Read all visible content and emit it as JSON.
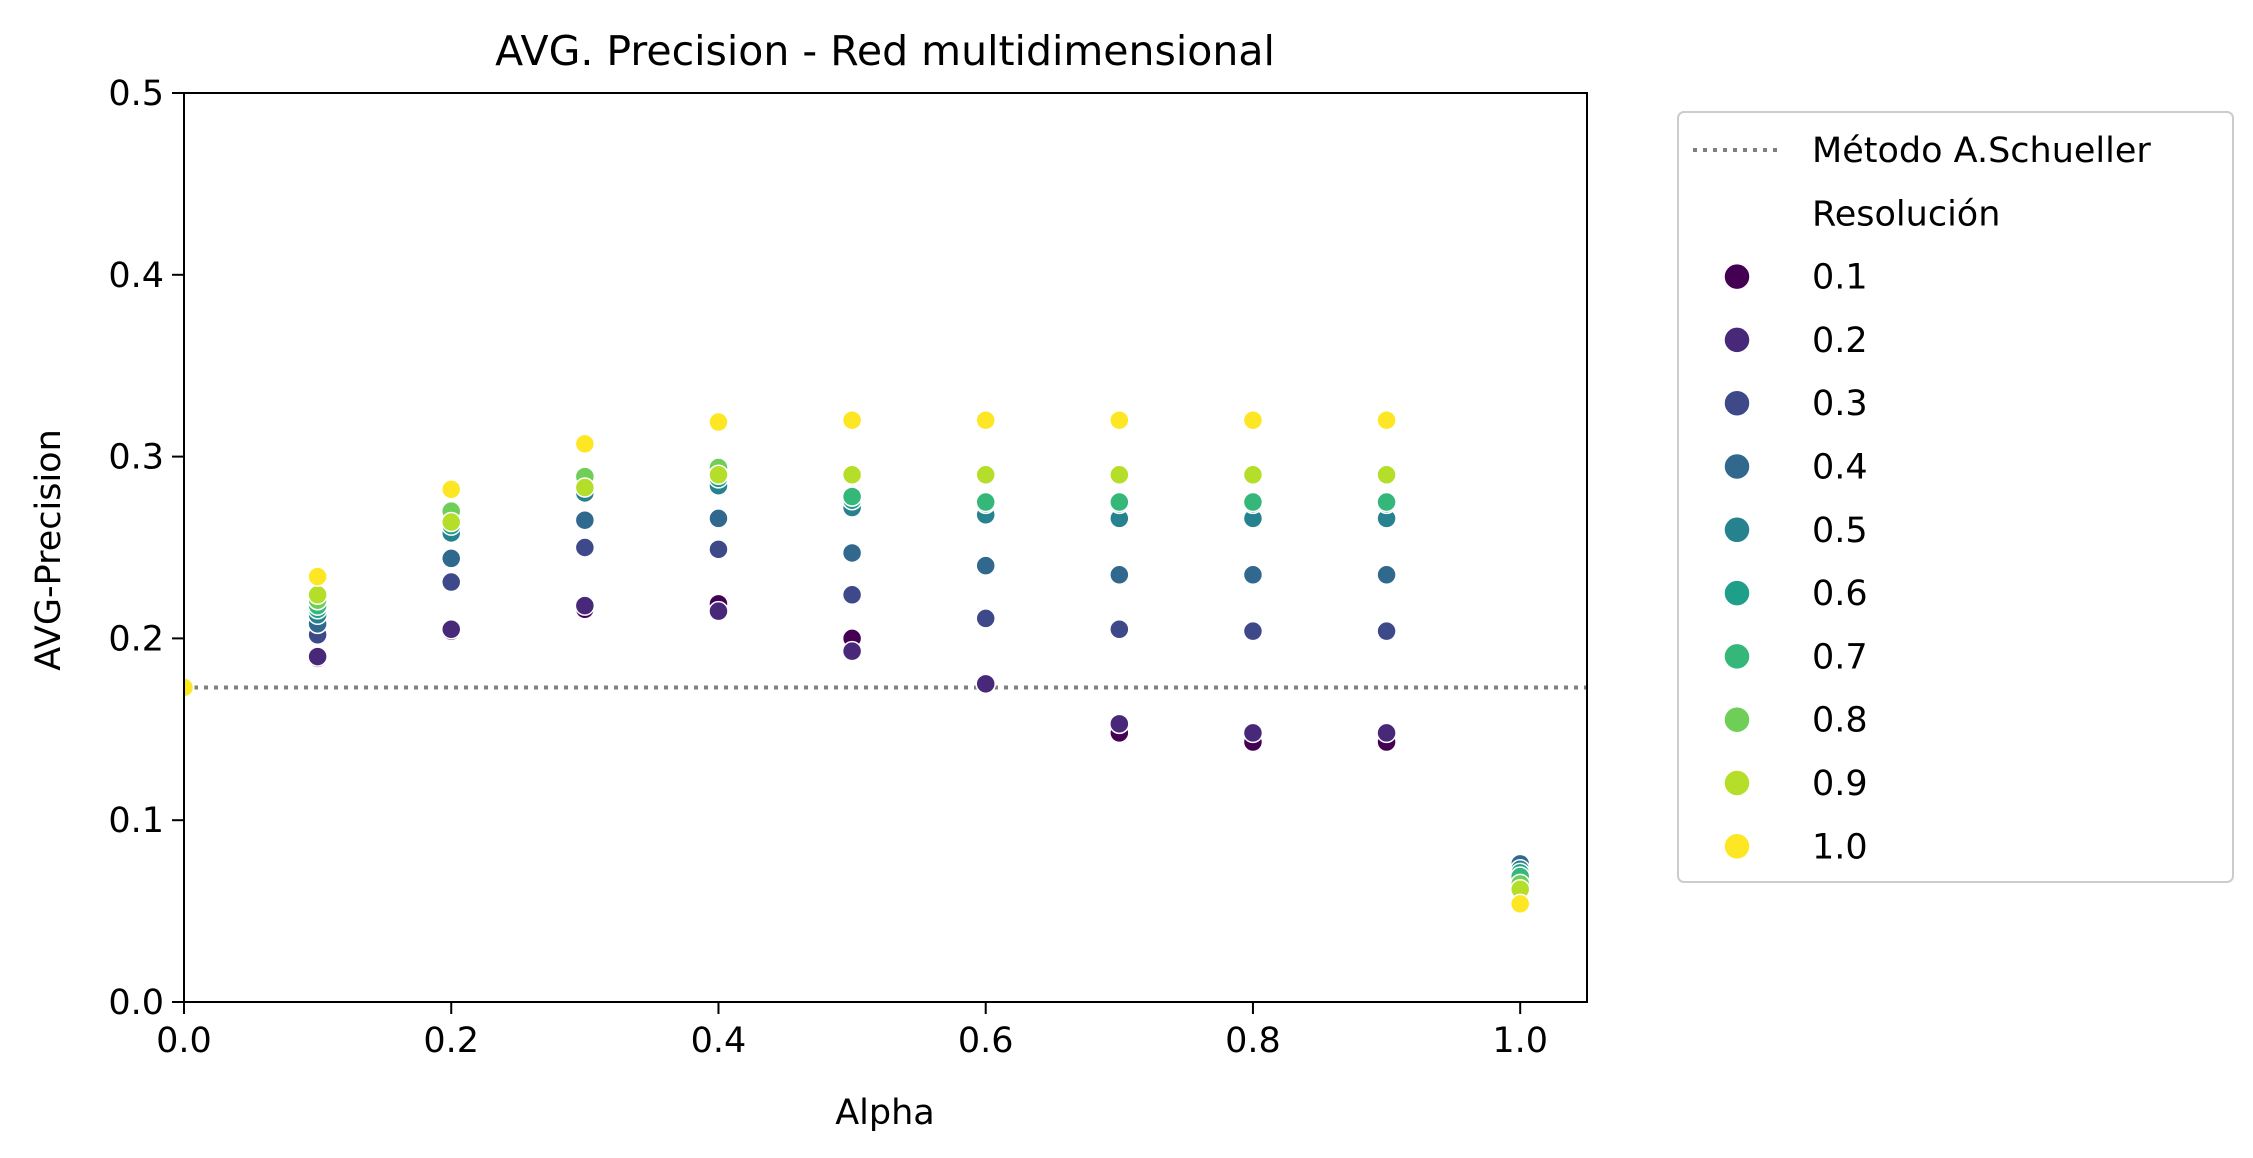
{
  "chart_data": {
    "type": "scatter",
    "title": "AVG. Precision - Red multidimensional",
    "xlabel": "Alpha",
    "ylabel": "AVG-Precision",
    "xlim": [
      0.0,
      1.05
    ],
    "ylim": [
      0.0,
      0.5
    ],
    "x_ticks": [
      "0.0",
      "0.2",
      "0.4",
      "0.6",
      "0.8",
      "1.0"
    ],
    "y_ticks": [
      "0.0",
      "0.1",
      "0.2",
      "0.3",
      "0.4",
      "0.5"
    ],
    "grid": false,
    "legend_position": "outside-right",
    "reference_line": {
      "label": "Método A.Schueller",
      "y": 0.173,
      "style": "dotted",
      "color": "#808080"
    },
    "legend_title": "Resolución",
    "x": [
      0.0,
      0.1,
      0.2,
      0.3,
      0.4,
      0.5,
      0.6,
      0.7,
      0.8,
      0.9,
      1.0
    ],
    "series": [
      {
        "name": "0.1",
        "color": "#440154",
        "values": [
          0.173,
          0.189,
          0.204,
          0.216,
          0.219,
          0.2,
          0.175,
          0.148,
          0.143,
          0.143,
          0.066
        ]
      },
      {
        "name": "0.2",
        "color": "#482878",
        "values": [
          0.173,
          0.19,
          0.205,
          0.218,
          0.215,
          0.193,
          0.175,
          0.153,
          0.148,
          0.148,
          0.067
        ]
      },
      {
        "name": "0.3",
        "color": "#3e4989",
        "values": [
          0.173,
          0.202,
          0.231,
          0.25,
          0.249,
          0.224,
          0.211,
          0.205,
          0.204,
          0.204,
          0.068
        ]
      },
      {
        "name": "0.4",
        "color": "#31688e",
        "values": [
          0.173,
          0.208,
          0.244,
          0.265,
          0.266,
          0.247,
          0.24,
          0.235,
          0.235,
          0.235,
          0.076
        ]
      },
      {
        "name": "0.5",
        "color": "#26828e",
        "values": [
          0.173,
          0.213,
          0.258,
          0.28,
          0.284,
          0.272,
          0.268,
          0.266,
          0.266,
          0.266,
          0.073
        ]
      },
      {
        "name": "0.6",
        "color": "#1f9e89",
        "values": [
          0.173,
          0.216,
          0.262,
          0.284,
          0.288,
          0.276,
          0.274,
          0.274,
          0.274,
          0.274,
          0.071
        ]
      },
      {
        "name": "0.7",
        "color": "#35b779",
        "values": [
          0.173,
          0.218,
          0.266,
          0.286,
          0.291,
          0.278,
          0.275,
          0.275,
          0.275,
          0.275,
          0.069
        ]
      },
      {
        "name": "0.8",
        "color": "#6ece58",
        "values": [
          0.173,
          0.221,
          0.27,
          0.289,
          0.294,
          0.29,
          0.29,
          0.29,
          0.29,
          0.29,
          0.065
        ]
      },
      {
        "name": "0.9",
        "color": "#b5de2b",
        "values": [
          0.173,
          0.224,
          0.264,
          0.283,
          0.29,
          0.29,
          0.29,
          0.29,
          0.29,
          0.29,
          0.062
        ]
      },
      {
        "name": "1.0",
        "color": "#fde725",
        "values": [
          0.173,
          0.234,
          0.282,
          0.307,
          0.319,
          0.32,
          0.32,
          0.32,
          0.32,
          0.32,
          0.054
        ]
      }
    ]
  }
}
